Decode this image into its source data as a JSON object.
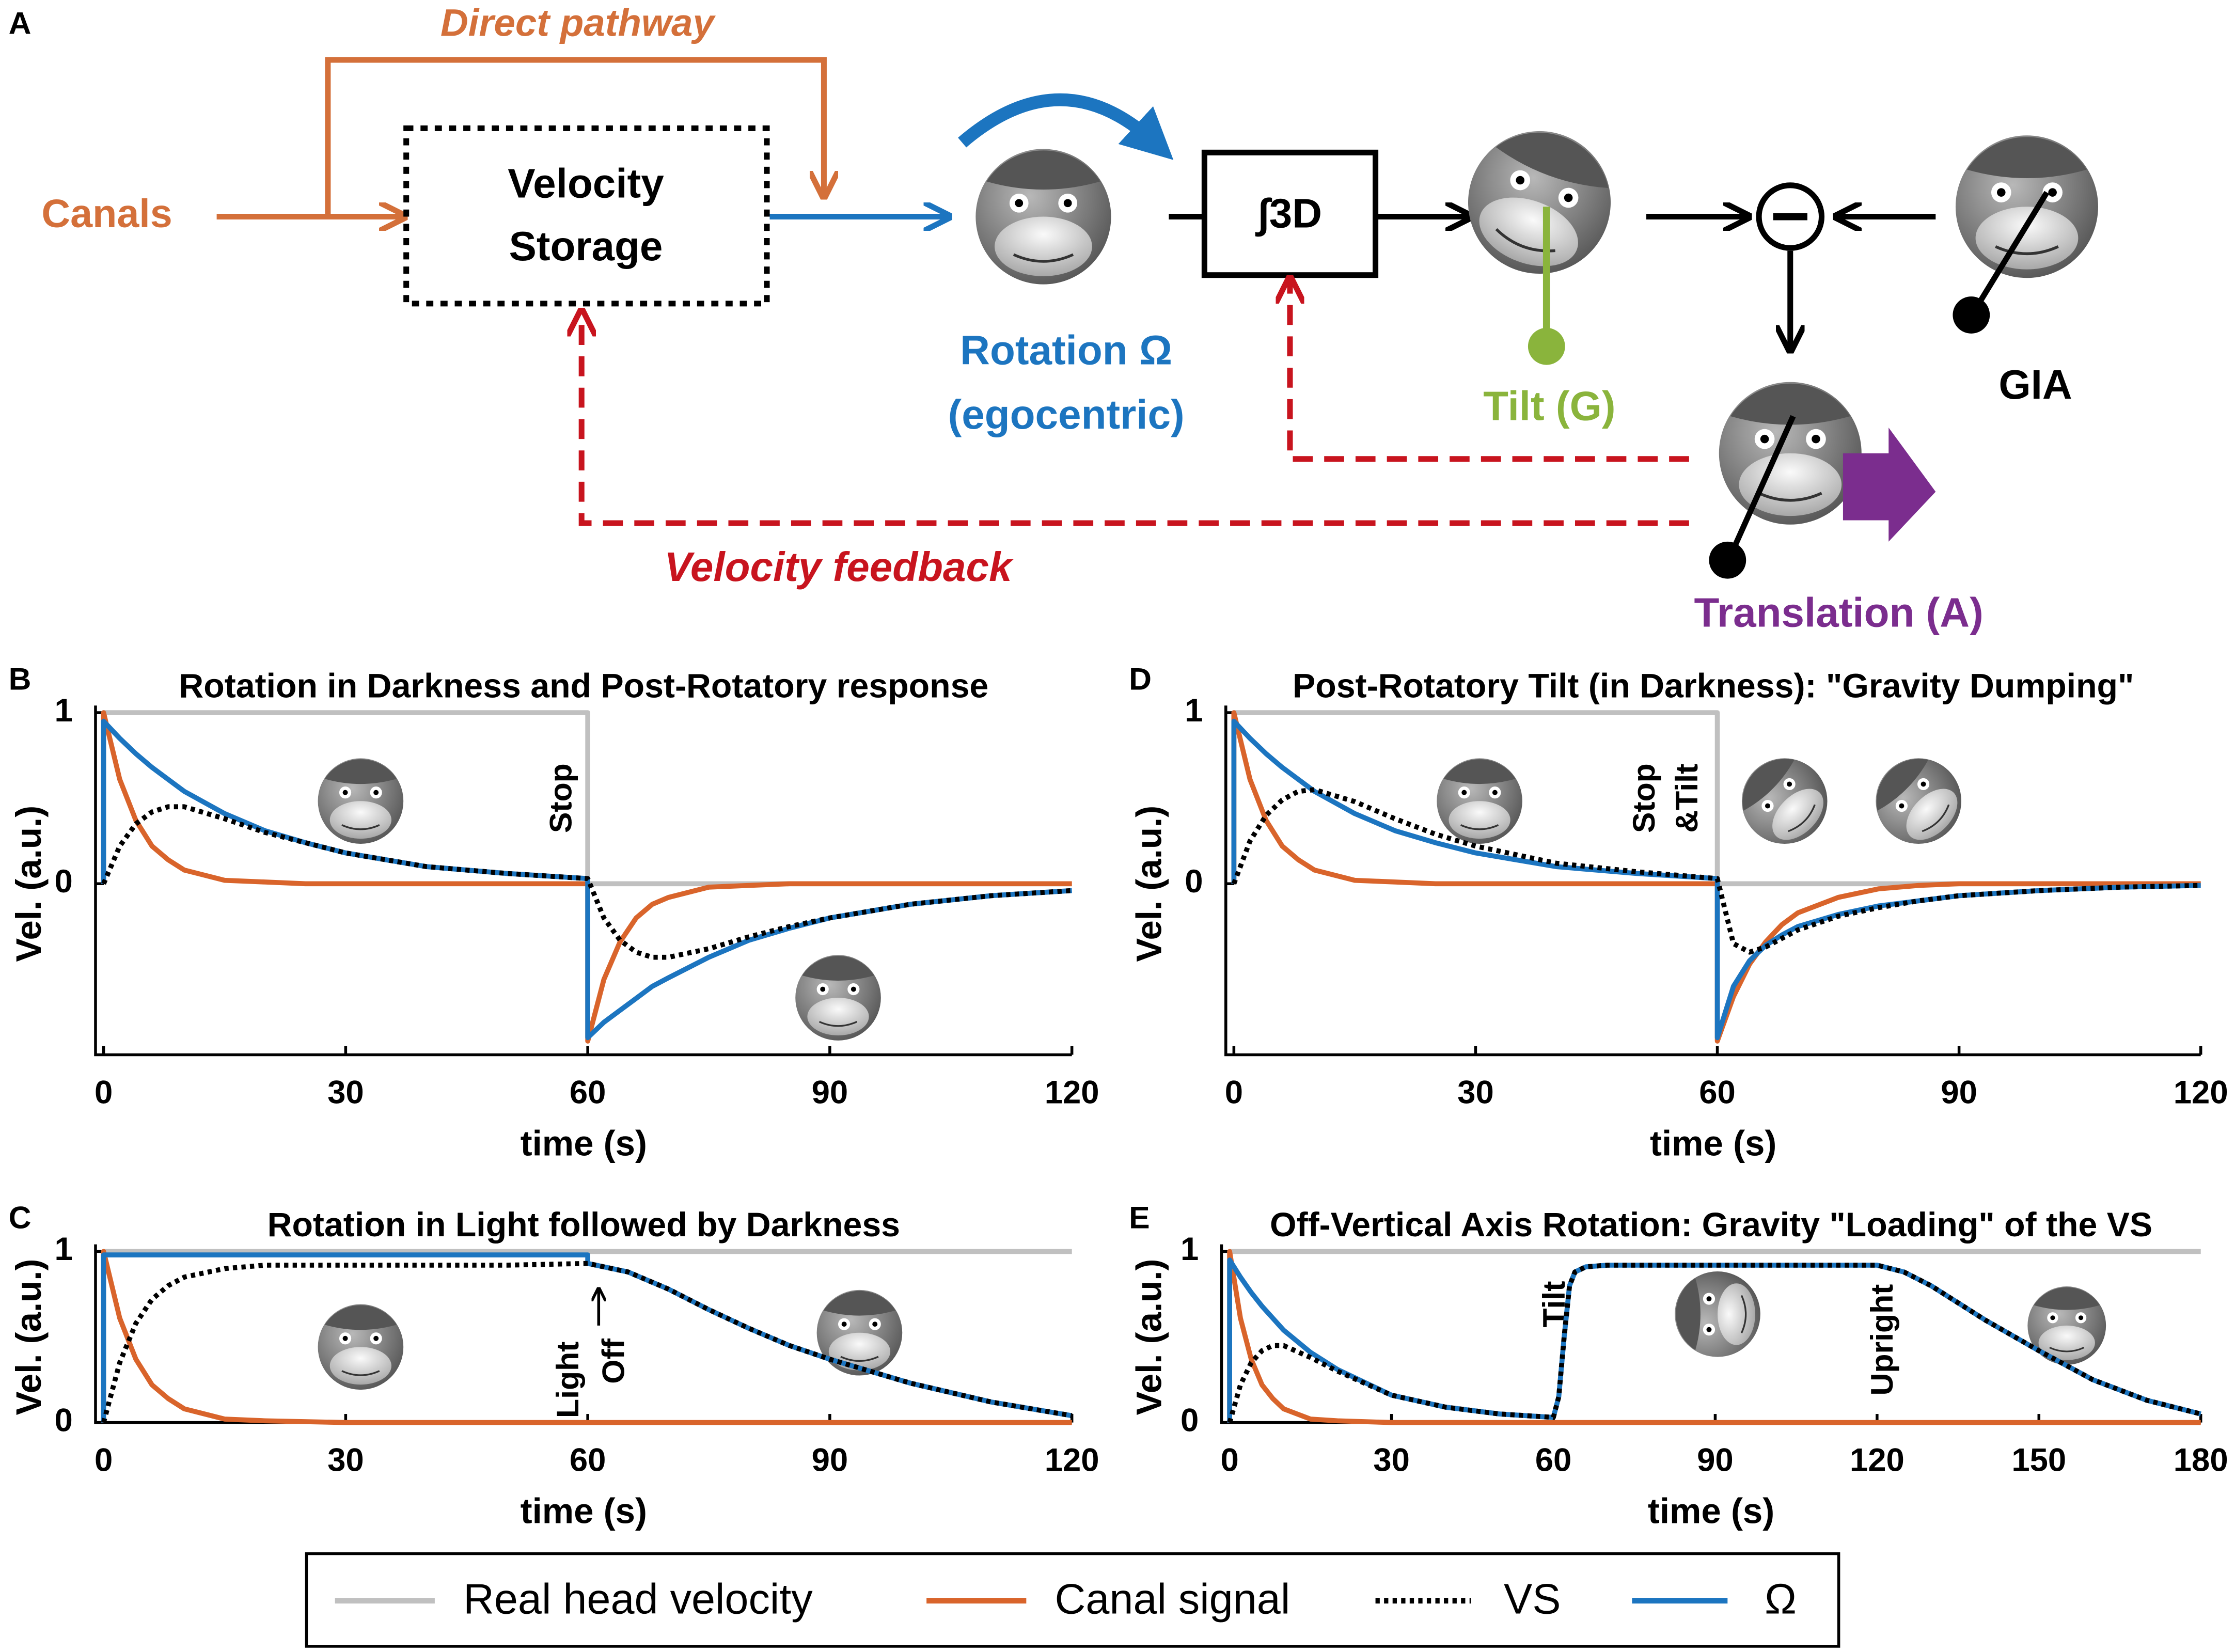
{
  "diagram": {
    "label": "A",
    "direct_pathway": "Direct pathway",
    "canals": "Canals",
    "velocity_storage": [
      "Velocity",
      "Storage"
    ],
    "integrator": "∫3D",
    "rotation": [
      "Rotation Ω",
      "(egocentric)"
    ],
    "tilt": "Tilt (G)",
    "gia": "GIA",
    "translation": "Translation (A)",
    "velocity_feedback": "Velocity feedback"
  },
  "chart_data": [
    {
      "type": "line",
      "panel": "B",
      "title": "Rotation in Darkness and Post-Rotatory response",
      "xlabel": "time (s)",
      "ylabel": "Vel. (a.u.)",
      "xlim": [
        -1,
        120
      ],
      "ylim": [
        -1,
        1
      ],
      "xticks": [
        0,
        30,
        60,
        90,
        120
      ],
      "yticks": [
        0,
        1
      ],
      "annotations": [
        "Stop"
      ],
      "x": [
        0,
        0,
        2,
        4,
        6,
        8,
        10,
        15,
        20,
        25,
        30,
        40,
        50,
        60,
        60,
        62,
        64,
        66,
        68,
        70,
        75,
        80,
        85,
        90,
        100,
        110,
        120
      ],
      "series": [
        {
          "name": "Real head velocity",
          "color": "#c0c0c0",
          "values": [
            0,
            1,
            1,
            1,
            1,
            1,
            1,
            1,
            1,
            1,
            1,
            1,
            1,
            1,
            0,
            0,
            0,
            0,
            0,
            0,
            0,
            0,
            0,
            0,
            0,
            0,
            0
          ]
        },
        {
          "name": "Canal signal",
          "color": "#d9642b",
          "values": [
            0,
            1,
            0.61,
            0.37,
            0.22,
            0.14,
            0.08,
            0.02,
            0.01,
            0,
            0,
            0,
            0,
            0,
            -0.92,
            -0.56,
            -0.34,
            -0.2,
            -0.12,
            -0.08,
            -0.02,
            -0.01,
            0,
            0,
            0,
            0,
            0
          ]
        },
        {
          "name": "VS",
          "color": "#000000",
          "dash": "dotted",
          "values": [
            0,
            0,
            0.22,
            0.35,
            0.42,
            0.45,
            0.45,
            0.38,
            0.3,
            0.24,
            0.18,
            0.1,
            0.06,
            0.03,
            0.03,
            -0.2,
            -0.33,
            -0.4,
            -0.43,
            -0.43,
            -0.38,
            -0.31,
            -0.25,
            -0.2,
            -0.12,
            -0.07,
            -0.04
          ]
        },
        {
          "name": "Ω",
          "color": "#1c75c0",
          "values": [
            0,
            0.95,
            0.85,
            0.76,
            0.68,
            0.61,
            0.54,
            0.41,
            0.31,
            0.24,
            0.18,
            0.1,
            0.06,
            0.03,
            -0.9,
            -0.81,
            -0.74,
            -0.67,
            -0.6,
            -0.55,
            -0.43,
            -0.33,
            -0.26,
            -0.2,
            -0.12,
            -0.07,
            -0.04
          ]
        }
      ]
    },
    {
      "type": "line",
      "panel": "D",
      "title": "Post-Rotatory Tilt (in Darkness): \"Gravity Dumping\"",
      "xlabel": "time (s)",
      "ylabel": "Vel. (a.u.)",
      "xlim": [
        -1,
        120
      ],
      "ylim": [
        -1,
        1
      ],
      "xticks": [
        0,
        30,
        60,
        90,
        120
      ],
      "yticks": [
        0,
        1
      ],
      "annotations": [
        "Stop",
        "&Tilt"
      ],
      "x": [
        0,
        0,
        2,
        4,
        6,
        8,
        10,
        15,
        20,
        25,
        30,
        40,
        50,
        60,
        60,
        62,
        64,
        66,
        68,
        70,
        75,
        80,
        85,
        90,
        100,
        110,
        120
      ],
      "series": [
        {
          "name": "Real head velocity",
          "color": "#c0c0c0",
          "values": [
            0,
            1,
            1,
            1,
            1,
            1,
            1,
            1,
            1,
            1,
            1,
            1,
            1,
            1,
            0,
            0,
            0,
            0,
            0,
            0,
            0,
            0,
            0,
            0,
            0,
            0,
            0
          ]
        },
        {
          "name": "Canal signal",
          "color": "#d9642b",
          "values": [
            0,
            1,
            0.61,
            0.37,
            0.22,
            0.14,
            0.08,
            0.02,
            0.01,
            0,
            0,
            0,
            0,
            0,
            -0.92,
            -0.66,
            -0.47,
            -0.34,
            -0.24,
            -0.17,
            -0.08,
            -0.03,
            -0.01,
            0,
            0,
            0,
            0
          ]
        },
        {
          "name": "VS",
          "color": "#000000",
          "dash": "dotted",
          "values": [
            0,
            0,
            0.25,
            0.4,
            0.49,
            0.54,
            0.55,
            0.48,
            0.38,
            0.29,
            0.22,
            0.12,
            0.07,
            0.03,
            0.03,
            -0.35,
            -0.4,
            -0.37,
            -0.32,
            -0.27,
            -0.19,
            -0.14,
            -0.1,
            -0.07,
            -0.04,
            -0.02,
            -0.01
          ]
        },
        {
          "name": "Ω",
          "color": "#1c75c0",
          "values": [
            0,
            0.95,
            0.85,
            0.76,
            0.68,
            0.61,
            0.54,
            0.41,
            0.31,
            0.24,
            0.18,
            0.1,
            0.06,
            0.03,
            -0.9,
            -0.6,
            -0.45,
            -0.36,
            -0.3,
            -0.25,
            -0.18,
            -0.13,
            -0.1,
            -0.07,
            -0.04,
            -0.02,
            -0.01
          ]
        }
      ]
    },
    {
      "type": "line",
      "panel": "C",
      "title": "Rotation in Light followed by Darkness",
      "xlabel": "time (s)",
      "ylabel": "Vel. (a.u.)",
      "xlim": [
        -1,
        120
      ],
      "ylim": [
        0,
        1
      ],
      "xticks": [
        0,
        30,
        60,
        90,
        120
      ],
      "yticks": [
        0,
        1
      ],
      "annotations": [
        "Light",
        "Off"
      ],
      "x": [
        0,
        0,
        2,
        4,
        6,
        8,
        10,
        15,
        20,
        30,
        40,
        50,
        60,
        60,
        65,
        70,
        75,
        80,
        85,
        90,
        95,
        100,
        110,
        120
      ],
      "series": [
        {
          "name": "Real head velocity",
          "color": "#c0c0c0",
          "values": [
            0,
            1,
            1,
            1,
            1,
            1,
            1,
            1,
            1,
            1,
            1,
            1,
            1,
            1,
            1,
            1,
            1,
            1,
            1,
            1,
            1,
            1,
            1,
            1
          ]
        },
        {
          "name": "Canal signal",
          "color": "#d9642b",
          "values": [
            0,
            1,
            0.61,
            0.37,
            0.22,
            0.14,
            0.08,
            0.02,
            0.01,
            0,
            0,
            0,
            0,
            0,
            0,
            0,
            0,
            0,
            0,
            0,
            0,
            0,
            0,
            0
          ]
        },
        {
          "name": "VS",
          "color": "#000000",
          "dash": "dotted",
          "values": [
            0,
            0,
            0.35,
            0.58,
            0.72,
            0.8,
            0.85,
            0.9,
            0.92,
            0.92,
            0.92,
            0.92,
            0.93,
            0.93,
            0.88,
            0.78,
            0.66,
            0.55,
            0.45,
            0.37,
            0.3,
            0.23,
            0.12,
            0.04
          ]
        },
        {
          "name": "Ω",
          "color": "#1c75c0",
          "values": [
            0,
            0.98,
            0.98,
            0.98,
            0.98,
            0.98,
            0.98,
            0.98,
            0.98,
            0.98,
            0.98,
            0.98,
            0.98,
            0.93,
            0.88,
            0.78,
            0.66,
            0.55,
            0.45,
            0.37,
            0.3,
            0.23,
            0.12,
            0.04
          ]
        }
      ]
    },
    {
      "type": "line",
      "panel": "E",
      "title": "Off-Vertical Axis Rotation: Gravity \"Loading\" of the VS",
      "xlabel": "time (s)",
      "ylabel": "Vel. (a.u.)",
      "xlim": [
        -1.5,
        180
      ],
      "ylim": [
        0,
        1
      ],
      "xticks": [
        0,
        30,
        60,
        90,
        120,
        150,
        180
      ],
      "yticks": [
        0,
        1
      ],
      "annotations": [
        "Tilt",
        "Upright"
      ],
      "x": [
        0,
        0,
        2,
        4,
        6,
        8,
        10,
        15,
        20,
        30,
        40,
        50,
        60,
        61,
        62,
        63,
        64,
        66,
        70,
        80,
        90,
        100,
        110,
        120,
        125,
        130,
        135,
        140,
        150,
        160,
        170,
        180
      ],
      "series": [
        {
          "name": "Real head velocity",
          "color": "#c0c0c0",
          "values": [
            0,
            1,
            1,
            1,
            1,
            1,
            1,
            1,
            1,
            1,
            1,
            1,
            1,
            1,
            1,
            1,
            1,
            1,
            1,
            1,
            1,
            1,
            1,
            1,
            1,
            1,
            1,
            1,
            1,
            1,
            1,
            1
          ]
        },
        {
          "name": "Canal signal",
          "color": "#d9642b",
          "values": [
            0,
            1,
            0.61,
            0.37,
            0.22,
            0.14,
            0.08,
            0.02,
            0.01,
            0,
            0,
            0,
            0,
            0,
            0,
            0,
            0,
            0,
            0,
            0,
            0,
            0,
            0,
            0,
            0,
            0,
            0,
            0,
            0,
            0,
            0,
            0
          ]
        },
        {
          "name": "VS",
          "color": "#000000",
          "dash": "dotted",
          "values": [
            0,
            0,
            0.22,
            0.35,
            0.42,
            0.45,
            0.45,
            0.38,
            0.3,
            0.16,
            0.09,
            0.05,
            0.03,
            0.15,
            0.5,
            0.8,
            0.88,
            0.91,
            0.92,
            0.92,
            0.92,
            0.92,
            0.92,
            0.92,
            0.88,
            0.8,
            0.7,
            0.6,
            0.42,
            0.25,
            0.13,
            0.05
          ]
        },
        {
          "name": "Ω",
          "color": "#1c75c0",
          "values": [
            0,
            0.95,
            0.85,
            0.76,
            0.68,
            0.61,
            0.54,
            0.41,
            0.31,
            0.16,
            0.09,
            0.05,
            0.03,
            0.15,
            0.5,
            0.8,
            0.88,
            0.91,
            0.92,
            0.92,
            0.92,
            0.92,
            0.92,
            0.92,
            0.88,
            0.8,
            0.7,
            0.6,
            0.42,
            0.25,
            0.13,
            0.05
          ]
        }
      ]
    }
  ]
}
